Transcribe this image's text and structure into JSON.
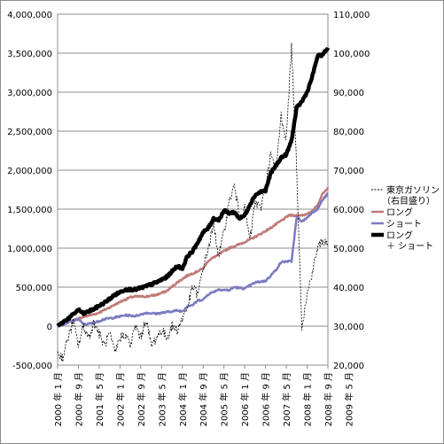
{
  "chart_data": {
    "type": "line",
    "x_categories": [
      "2000 年 1 月",
      "2000 年 9 月",
      "2001 年 5 月",
      "2002 年 1 月",
      "2002 年 9 月",
      "2003 年 5 月",
      "2004 年 1 月",
      "2004 年 9 月",
      "2005 年 5 月",
      "2006 年 1 月",
      "2006 年 9 月",
      "2007 年 5 月",
      "2008 年 1 月",
      "2008 年 9 月",
      "2009 年 5 月"
    ],
    "y_left": {
      "ticks": [
        "4,000,000",
        "3,500,000",
        "3,000,000",
        "2,500,000",
        "2,000,000",
        "1,500,000",
        "1,000,000",
        "500,000",
        "0",
        "-500,000"
      ],
      "min": -500000,
      "max": 4000000
    },
    "y_right": {
      "ticks": [
        "110,000",
        "100,000",
        "90,000",
        "80,000",
        "70,000",
        "60,000",
        "50,000",
        "40,000",
        "30,000",
        "20,000"
      ],
      "min": 20000,
      "max": 110000
    },
    "grid": true,
    "legend_position": "right",
    "series": [
      {
        "name": "東京ガソリン",
        "name_line2": "（右目盛り）",
        "axis": "right",
        "color": "#000000",
        "style": "dashed",
        "anchors": [
          [
            0,
            23000
          ],
          [
            2,
            22000
          ],
          [
            4,
            27000
          ],
          [
            6,
            31000
          ],
          [
            8,
            25000
          ],
          [
            10,
            30000
          ],
          [
            12,
            27000
          ],
          [
            14,
            31000
          ],
          [
            16,
            28000
          ],
          [
            18,
            25000
          ],
          [
            20,
            28000
          ],
          [
            22,
            23000
          ],
          [
            24,
            27000
          ],
          [
            26,
            28000
          ],
          [
            28,
            25000
          ],
          [
            30,
            30000
          ],
          [
            32,
            27000
          ],
          [
            34,
            32000
          ],
          [
            36,
            25000
          ],
          [
            38,
            27000
          ],
          [
            40,
            29000
          ],
          [
            42,
            27000
          ],
          [
            44,
            30000
          ],
          [
            46,
            29000
          ],
          [
            48,
            32000
          ],
          [
            50,
            35000
          ],
          [
            52,
            40000
          ],
          [
            54,
            38000
          ],
          [
            56,
            45000
          ],
          [
            58,
            50000
          ],
          [
            60,
            56000
          ],
          [
            62,
            48000
          ],
          [
            64,
            54000
          ],
          [
            66,
            62000
          ],
          [
            68,
            66000
          ],
          [
            70,
            58000
          ],
          [
            72,
            60000
          ],
          [
            74,
            52000
          ],
          [
            76,
            62000
          ],
          [
            78,
            60000
          ],
          [
            80,
            66000
          ],
          [
            82,
            74000
          ],
          [
            84,
            70000
          ],
          [
            86,
            84000
          ],
          [
            88,
            78000
          ],
          [
            90,
            102000
          ],
          [
            92,
            70000
          ],
          [
            94,
            30000
          ],
          [
            96,
            38000
          ],
          [
            98,
            44000
          ],
          [
            100,
            50000
          ],
          [
            102,
            52000
          ],
          [
            104,
            51000
          ]
        ]
      },
      {
        "name": "ロング",
        "axis": "left",
        "color": "#bf7a78",
        "style": "solid",
        "anchors": [
          [
            0,
            0
          ],
          [
            5,
            60000
          ],
          [
            10,
            120000
          ],
          [
            15,
            160000
          ],
          [
            20,
            240000
          ],
          [
            24,
            310000
          ],
          [
            28,
            370000
          ],
          [
            30,
            380000
          ],
          [
            34,
            380000
          ],
          [
            38,
            400000
          ],
          [
            42,
            450000
          ],
          [
            46,
            560000
          ],
          [
            50,
            650000
          ],
          [
            53,
            690000
          ],
          [
            56,
            740000
          ],
          [
            58,
            840000
          ],
          [
            62,
            920000
          ],
          [
            66,
            1000000
          ],
          [
            70,
            1050000
          ],
          [
            74,
            1110000
          ],
          [
            78,
            1180000
          ],
          [
            82,
            1260000
          ],
          [
            86,
            1350000
          ],
          [
            89,
            1420000
          ],
          [
            92,
            1420000
          ],
          [
            96,
            1430000
          ],
          [
            98,
            1480000
          ],
          [
            100,
            1550000
          ],
          [
            102,
            1700000
          ],
          [
            104,
            1780000
          ]
        ]
      },
      {
        "name": "ショート",
        "axis": "left",
        "color": "#7b7bc1",
        "style": "solid",
        "anchors": [
          [
            0,
            0
          ],
          [
            5,
            60000
          ],
          [
            8,
            90000
          ],
          [
            10,
            20000
          ],
          [
            14,
            40000
          ],
          [
            18,
            90000
          ],
          [
            22,
            110000
          ],
          [
            26,
            140000
          ],
          [
            30,
            130000
          ],
          [
            34,
            170000
          ],
          [
            38,
            160000
          ],
          [
            42,
            180000
          ],
          [
            46,
            200000
          ],
          [
            48,
            190000
          ],
          [
            50,
            260000
          ],
          [
            52,
            270000
          ],
          [
            54,
            330000
          ],
          [
            56,
            340000
          ],
          [
            58,
            410000
          ],
          [
            62,
            470000
          ],
          [
            66,
            460000
          ],
          [
            68,
            500000
          ],
          [
            72,
            480000
          ],
          [
            76,
            560000
          ],
          [
            80,
            580000
          ],
          [
            84,
            720000
          ],
          [
            86,
            820000
          ],
          [
            88,
            830000
          ],
          [
            90,
            830000
          ],
          [
            92,
            1400000
          ],
          [
            94,
            1340000
          ],
          [
            96,
            1390000
          ],
          [
            98,
            1460000
          ],
          [
            100,
            1500000
          ],
          [
            102,
            1620000
          ],
          [
            104,
            1700000
          ]
        ]
      },
      {
        "name": "ロング",
        "name_line2": "＋ ショート",
        "axis": "left",
        "color": "#000000",
        "style": "thick",
        "anchors": [
          [
            0,
            0
          ],
          [
            5,
            120000
          ],
          [
            8,
            210000
          ],
          [
            10,
            160000
          ],
          [
            14,
            220000
          ],
          [
            18,
            300000
          ],
          [
            22,
            400000
          ],
          [
            26,
            470000
          ],
          [
            30,
            470000
          ],
          [
            34,
            510000
          ],
          [
            38,
            560000
          ],
          [
            42,
            630000
          ],
          [
            46,
            770000
          ],
          [
            48,
            740000
          ],
          [
            50,
            900000
          ],
          [
            52,
            960000
          ],
          [
            54,
            1080000
          ],
          [
            56,
            1200000
          ],
          [
            58,
            1260000
          ],
          [
            60,
            1380000
          ],
          [
            62,
            1360000
          ],
          [
            64,
            1480000
          ],
          [
            66,
            1450000
          ],
          [
            68,
            1460000
          ],
          [
            70,
            1380000
          ],
          [
            72,
            1420000
          ],
          [
            74,
            1560000
          ],
          [
            76,
            1680000
          ],
          [
            78,
            1720000
          ],
          [
            80,
            1740000
          ],
          [
            82,
            1960000
          ],
          [
            84,
            2060000
          ],
          [
            86,
            2160000
          ],
          [
            88,
            2200000
          ],
          [
            90,
            2380000
          ],
          [
            92,
            2800000
          ],
          [
            94,
            2880000
          ],
          [
            96,
            3000000
          ],
          [
            98,
            3200000
          ],
          [
            100,
            3460000
          ],
          [
            102,
            3480000
          ],
          [
            104,
            3570000
          ]
        ]
      }
    ]
  }
}
